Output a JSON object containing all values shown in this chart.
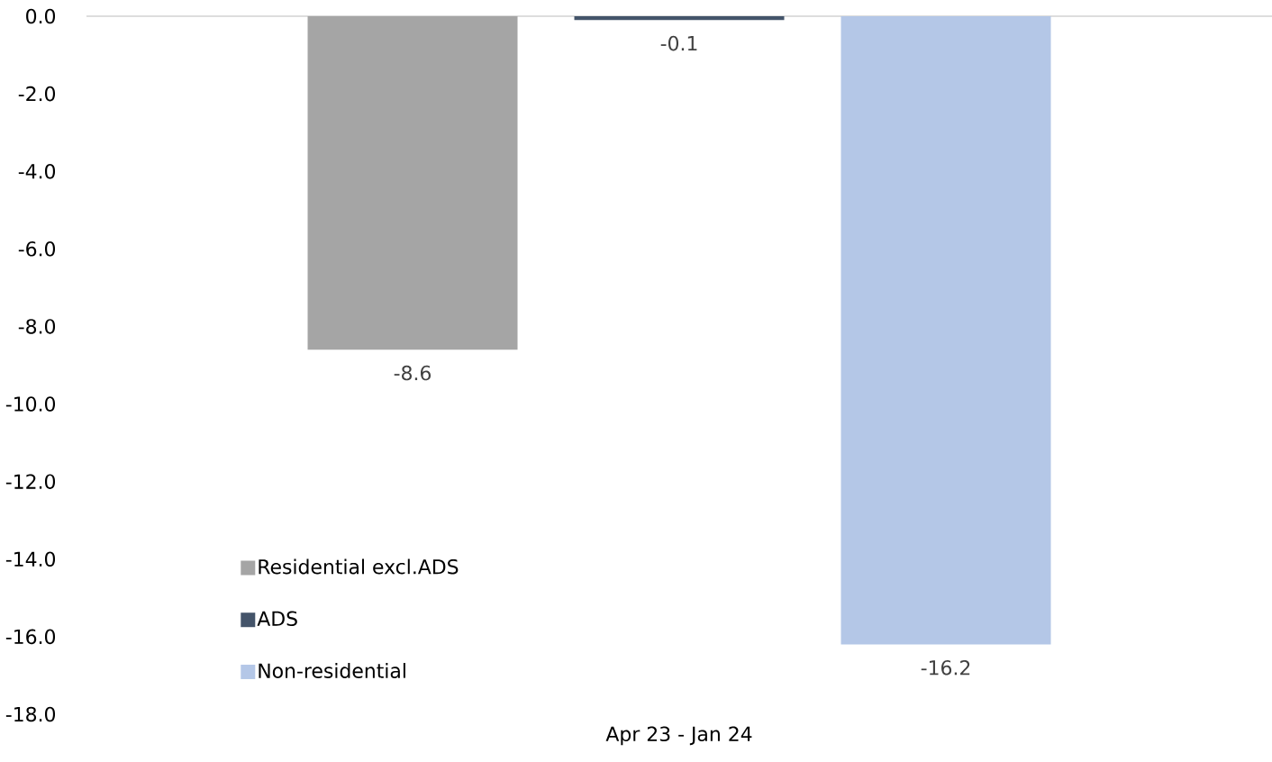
{
  "chart_data": {
    "type": "bar",
    "categories": [
      "Apr 23 - Jan 24"
    ],
    "series": [
      {
        "name": "Residential excl.ADS",
        "color": "#a5a5a5",
        "values": [
          -8.6
        ],
        "value_labels": [
          "-8.6"
        ]
      },
      {
        "name": "ADS",
        "color": "#44546a",
        "values": [
          -0.1
        ],
        "value_labels": [
          "-0.1"
        ]
      },
      {
        "name": "Non-residential",
        "color": "#b4c7e7",
        "values": [
          -16.2
        ],
        "value_labels": [
          "-16.2"
        ]
      }
    ],
    "ylim": [
      -18,
      0
    ],
    "yticks": [
      {
        "value": 0,
        "label": "0.0"
      },
      {
        "value": -2,
        "label": "-2.0"
      },
      {
        "value": -4,
        "label": "-4.0"
      },
      {
        "value": -6,
        "label": "-6.0"
      },
      {
        "value": -8,
        "label": "-8.0"
      },
      {
        "value": -10,
        "label": "-10.0"
      },
      {
        "value": -12,
        "label": "-12.0"
      },
      {
        "value": -14,
        "label": "-14.0"
      },
      {
        "value": -16,
        "label": "-16.0"
      },
      {
        "value": -18,
        "label": "-18.0"
      }
    ],
    "legend": "bottom left"
  }
}
